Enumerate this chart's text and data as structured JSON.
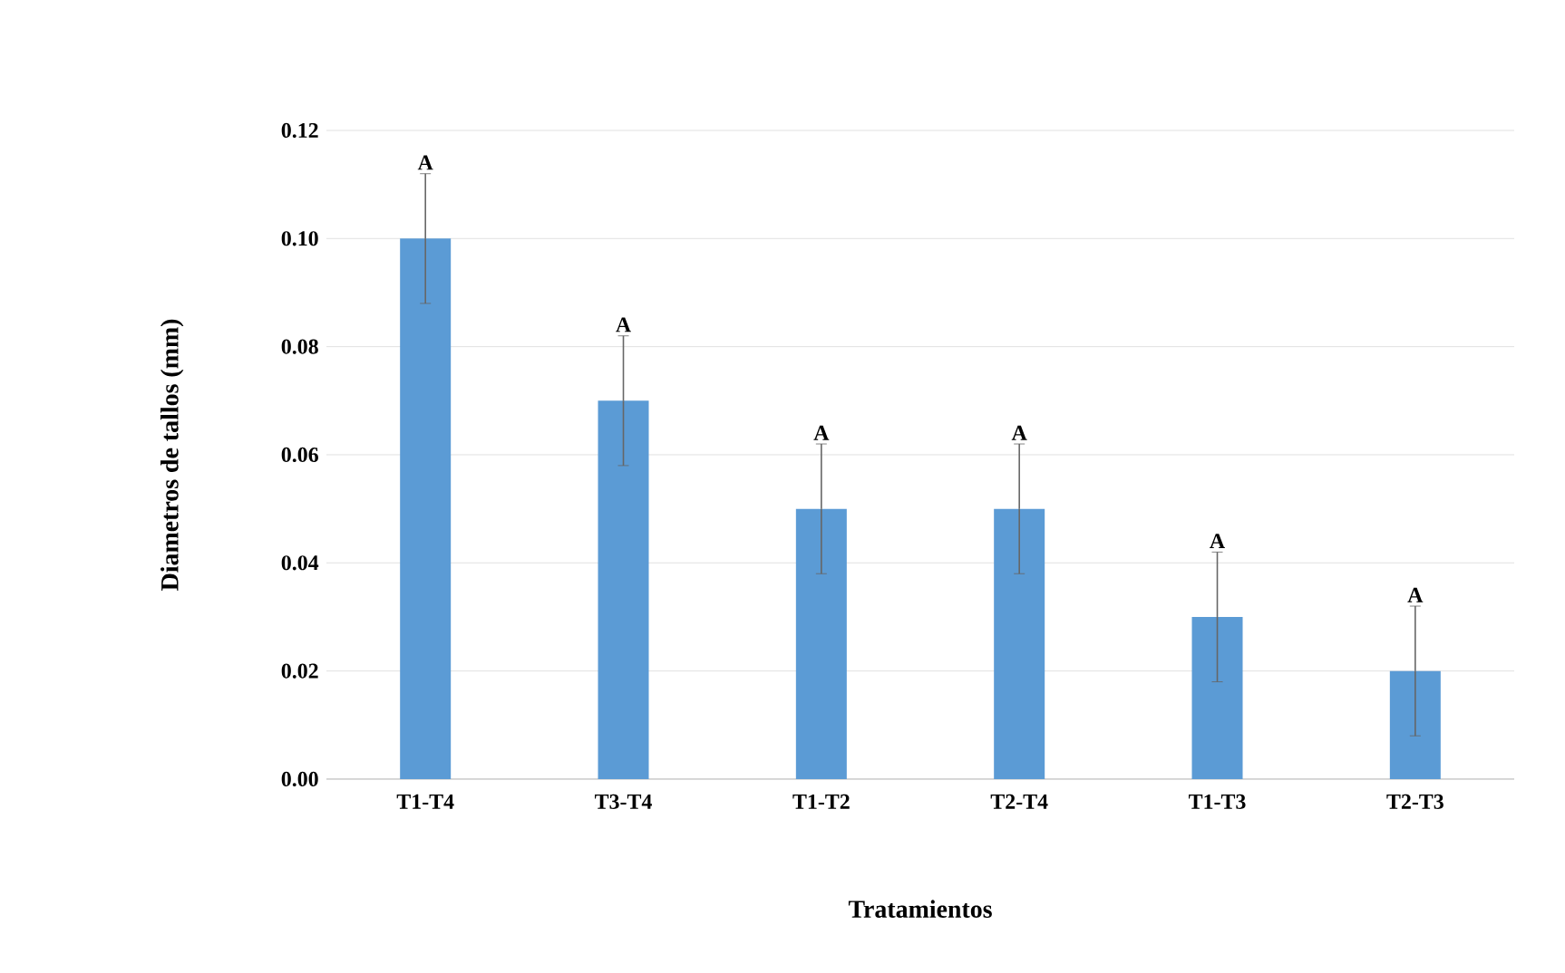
{
  "chart_data": {
    "type": "bar",
    "xlabel": "Tratamientos",
    "ylabel": "Diametros de tallos (mm)",
    "categories": [
      "T1-T4",
      "T3-T4",
      "T1-T2",
      "T2-T4",
      "T1-T3",
      "T2-T3"
    ],
    "values": [
      0.1,
      0.07,
      0.05,
      0.05,
      0.03,
      0.02
    ],
    "errors": [
      0.012,
      0.012,
      0.012,
      0.012,
      0.012,
      0.012
    ],
    "color": "#5b9bd5",
    "ylim": [
      0,
      0.12
    ],
    "yticks": [
      {
        "value": 0,
        "label": "0.00"
      },
      {
        "value": 0.02,
        "label": "0.02"
      },
      {
        "value": 0.04,
        "label": "0.04"
      },
      {
        "value": 0.06,
        "label": "0.06"
      },
      {
        "value": 0.08,
        "label": "0.08"
      },
      {
        "value": 0.1,
        "label": "0.10"
      },
      {
        "value": 0.12,
        "label": "0.12"
      }
    ],
    "grid": "y",
    "annotations": [
      {
        "text": "A",
        "x": "T1-T4",
        "y": 0.112
      },
      {
        "text": "A",
        "x": "T3-T4",
        "y": 0.082
      },
      {
        "text": "A",
        "x": "T1-T2",
        "y": 0.062
      },
      {
        "text": "A",
        "x": "T2-T4",
        "y": 0.062
      },
      {
        "text": "A",
        "x": "T1-T3",
        "y": 0.042
      },
      {
        "text": "A",
        "x": "T2-T3",
        "y": 0.032
      }
    ]
  }
}
